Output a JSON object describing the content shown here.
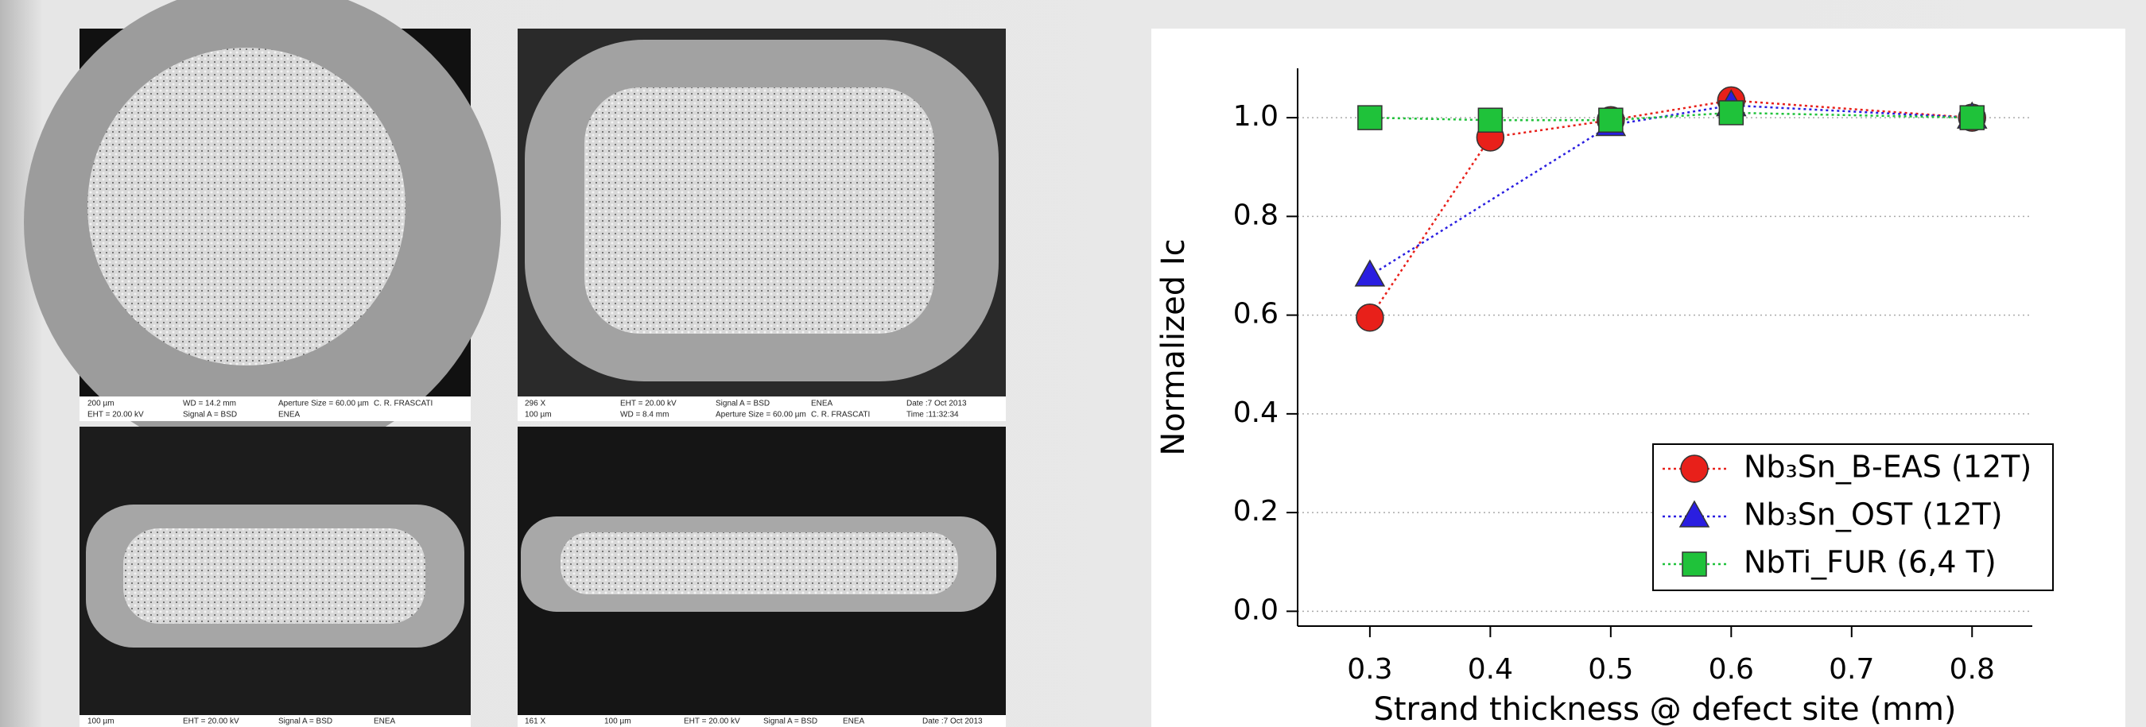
{
  "chart_data": {
    "type": "line",
    "x_label": "Strand thickness @ defect site (mm)",
    "y_label": "Normalized Ic",
    "xlim": [
      0.24,
      0.85
    ],
    "ylim": [
      -0.03,
      1.1
    ],
    "xticks": [
      0.3,
      0.4,
      0.5,
      0.6,
      0.7,
      0.8
    ],
    "yticks": [
      {
        "value": 0,
        "label": "0.0"
      },
      0.2,
      0.4,
      0.6,
      0.8,
      {
        "value": 1,
        "label": "1.0"
      }
    ],
    "grid": true,
    "legend": "lower-right",
    "series": [
      {
        "name": "Nb₃Sn_B-EAS (12T)",
        "color": "#e8201a",
        "marker": "circle",
        "x": [
          0.3,
          0.4,
          0.5,
          0.6,
          0.8
        ],
        "values": [
          0.595,
          0.96,
          0.995,
          1.035,
          1.0
        ]
      },
      {
        "name": "Nb₃Sn_OST (12T)",
        "color": "#2a1ee0",
        "marker": "triangle",
        "x": [
          0.3,
          0.5,
          0.6,
          0.8
        ],
        "values": [
          0.68,
          0.985,
          1.025,
          1.0
        ]
      },
      {
        "name": "NbTi_FUR (6,4 T)",
        "color": "#1fc23a",
        "marker": "square",
        "x": [
          0.3,
          0.4,
          0.5,
          0.6,
          0.8
        ],
        "values": [
          1.0,
          0.995,
          0.995,
          1.01,
          1.0
        ]
      }
    ]
  },
  "micrographs": [
    {
      "captions": [
        "200 µm",
        "EHT = 20.00 kV",
        "WD = 14.2 mm",
        "Signal A = BSD",
        "Aperture Size = 60.00 µm",
        "ENEA",
        "C. R. FRASCATI"
      ]
    },
    {
      "captions": [
        "296 X",
        "100 µm",
        "EHT = 20.00 kV",
        "WD = 8.4 mm",
        "Signal A = BSD",
        "Aperture Size = 60.00 µm",
        "ENEA",
        "C. R. FRASCATI",
        "Date :7 Oct 2013",
        "Time :11:32:34"
      ]
    },
    {
      "captions": [
        "100 µm",
        "EHT = 20.00 kV",
        "Signal A = BSD",
        "ENEA"
      ]
    },
    {
      "captions": [
        "161 X",
        "100 µm",
        "EHT = 20.00 kV",
        "Signal A = BSD",
        "ENEA",
        "Date :7 Oct 2013"
      ]
    }
  ]
}
